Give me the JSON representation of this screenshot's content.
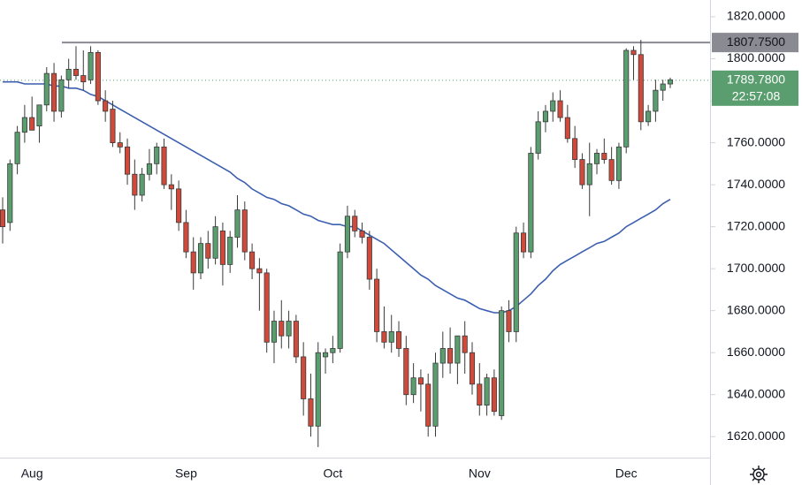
{
  "chart_data": {
    "type": "candlestick",
    "categories": [
      null,
      null,
      null,
      null,
      "Aug",
      null,
      null,
      null,
      null,
      null,
      null,
      null,
      null,
      null,
      null,
      null,
      null,
      null,
      null,
      null,
      null,
      null,
      null,
      null,
      null,
      "Sep",
      null,
      null,
      null,
      null,
      null,
      null,
      null,
      null,
      null,
      null,
      null,
      null,
      null,
      null,
      null,
      null,
      null,
      null,
      null,
      "Oct",
      null,
      null,
      null,
      null,
      null,
      null,
      null,
      null,
      null,
      null,
      null,
      null,
      null,
      null,
      null,
      null,
      null,
      null,
      null,
      "Nov",
      null,
      null,
      null,
      null,
      null,
      null,
      null,
      null,
      null,
      null,
      null,
      null,
      null,
      null,
      null,
      null,
      null,
      null,
      null,
      "Dec",
      null,
      null,
      null,
      null,
      null,
      null
    ],
    "open": [
      1728,
      1722,
      1750,
      1765,
      1772,
      1768,
      1778,
      1793,
      1775,
      1790,
      1795,
      1792,
      1790,
      1803,
      1780,
      1776,
      1760,
      1758,
      1745,
      1735,
      1745,
      1750,
      1758,
      1740,
      1738,
      1722,
      1708,
      1698,
      1712,
      1705,
      1718,
      1702,
      1715,
      1728,
      1708,
      1700,
      1698,
      1665,
      1675,
      1668,
      1675,
      1658,
      1638,
      1625,
      1658,
      1660,
      1662,
      1708,
      1725,
      1718,
      1715,
      1695,
      1670,
      1665,
      1670,
      1662,
      1640,
      1648,
      1645,
      1625,
      1655,
      1662,
      1655,
      1668,
      1660,
      1645,
      1635,
      1648,
      1630,
      1680,
      1670,
      1717,
      1708,
      1755,
      1770,
      1775,
      1780,
      1772,
      1762,
      1752,
      1740,
      1750,
      1755,
      1752,
      1742,
      1758,
      1804,
      1802,
      1770,
      1775,
      1785,
      1788
    ],
    "high": [
      1734,
      1752,
      1768,
      1778,
      1782,
      1778,
      1796,
      1798,
      1792,
      1800,
      1806,
      1804,
      1806,
      1804,
      1785,
      1780,
      1765,
      1762,
      1752,
      1748,
      1757,
      1760,
      1762,
      1745,
      1742,
      1728,
      1715,
      1715,
      1718,
      1725,
      1722,
      1718,
      1735,
      1732,
      1712,
      1705,
      1700,
      1680,
      1685,
      1680,
      1678,
      1665,
      1650,
      1665,
      1662,
      1668,
      1712,
      1730,
      1728,
      1722,
      1718,
      1700,
      1682,
      1678,
      1675,
      1668,
      1655,
      1652,
      1650,
      1660,
      1670,
      1672,
      1668,
      1675,
      1665,
      1655,
      1650,
      1652,
      1682,
      1685,
      1720,
      1722,
      1758,
      1775,
      1778,
      1784,
      1785,
      1778,
      1768,
      1755,
      1760,
      1757,
      1762,
      1758,
      1760,
      1805,
      1806,
      1809,
      1778,
      1790,
      1790,
      1791
    ],
    "low": [
      1712,
      1718,
      1745,
      1760,
      1768,
      1760,
      1775,
      1770,
      1772,
      1786,
      1790,
      1785,
      1788,
      1778,
      1770,
      1758,
      1755,
      1740,
      1728,
      1732,
      1742,
      1745,
      1738,
      1728,
      1718,
      1705,
      1690,
      1695,
      1700,
      1702,
      1692,
      1698,
      1710,
      1704,
      1695,
      1680,
      1660,
      1655,
      1662,
      1662,
      1655,
      1630,
      1620,
      1615,
      1650,
      1655,
      1660,
      1705,
      1715,
      1712,
      1690,
      1665,
      1662,
      1660,
      1658,
      1635,
      1636,
      1632,
      1620,
      1620,
      1648,
      1650,
      1645,
      1650,
      1640,
      1630,
      1630,
      1630,
      1628,
      1665,
      1665,
      1705,
      1705,
      1752,
      1765,
      1770,
      1770,
      1760,
      1748,
      1738,
      1725,
      1745,
      1750,
      1740,
      1738,
      1755,
      1790,
      1766,
      1768,
      1770,
      1780,
      1786
    ],
    "close": [
      1720,
      1750,
      1765,
      1772,
      1766,
      1778,
      1793,
      1775,
      1790,
      1795,
      1792,
      1789,
      1803,
      1780,
      1775,
      1760,
      1758,
      1745,
      1735,
      1745,
      1750,
      1758,
      1740,
      1738,
      1722,
      1708,
      1698,
      1712,
      1705,
      1720,
      1702,
      1715,
      1728,
      1708,
      1700,
      1698,
      1665,
      1675,
      1668,
      1675,
      1658,
      1638,
      1625,
      1660,
      1660,
      1662,
      1708,
      1725,
      1718,
      1715,
      1695,
      1670,
      1665,
      1670,
      1662,
      1640,
      1648,
      1645,
      1625,
      1655,
      1662,
      1655,
      1668,
      1660,
      1645,
      1635,
      1648,
      1632,
      1680,
      1670,
      1717,
      1708,
      1755,
      1770,
      1775,
      1780,
      1772,
      1762,
      1752,
      1740,
      1750,
      1755,
      1752,
      1742,
      1758,
      1804,
      1802,
      1770,
      1775,
      1785,
      1788,
      1790
    ],
    "up_color": "#5a9e6f",
    "down_color": "#cf4a3b",
    "series": [
      {
        "color": "#3c5fb0",
        "values": [
          1789,
          1789,
          1789,
          1788,
          1788,
          1788,
          1788,
          1787,
          1787,
          1786,
          1786,
          1785,
          1783,
          1782,
          1780,
          1778,
          1776,
          1774,
          1772,
          1770,
          1768,
          1766,
          1764,
          1762,
          1760,
          1758,
          1756,
          1754,
          1752,
          1750,
          1748,
          1746,
          1743,
          1741,
          1738,
          1736,
          1734,
          1733,
          1731,
          1730,
          1728,
          1726,
          1725,
          1723,
          1722,
          1721,
          1721,
          1720,
          1720,
          1718,
          1716,
          1714,
          1712,
          1709,
          1706,
          1703,
          1700,
          1697,
          1695,
          1692,
          1690,
          1688,
          1686,
          1685,
          1683,
          1681,
          1680,
          1679,
          1679,
          1680,
          1682,
          1685,
          1688,
          1692,
          1695,
          1699,
          1702,
          1704,
          1706,
          1708,
          1710,
          1712,
          1713,
          1715,
          1717,
          1720,
          1722,
          1724,
          1726,
          1728,
          1731,
          1733
        ]
      }
    ],
    "ylim": [
      1610,
      1828
    ],
    "yticks": [
      {
        "value": 1620,
        "label": "1620.0000"
      },
      {
        "value": 1640,
        "label": "1640.0000"
      },
      {
        "value": 1660,
        "label": "1660.0000"
      },
      {
        "value": 1680,
        "label": "1680.0000"
      },
      {
        "value": 1700,
        "label": "1700.0000"
      },
      {
        "value": 1720,
        "label": "1720.0000"
      },
      {
        "value": 1740,
        "label": "1740.0000"
      },
      {
        "value": 1760,
        "label": "1760.0000"
      },
      {
        "value": 1780,
        "label": "1780.0000"
      },
      {
        "value": 1800,
        "label": "1800.0000"
      },
      {
        "value": 1820,
        "label": "1820.0000"
      }
    ],
    "hline": {
      "value": 1807.75,
      "label": "1807.7500",
      "color": "#8a8a92"
    },
    "last_price": {
      "value": 1789.78,
      "label": "1789.7800",
      "countdown": "22:57:08",
      "color": "#5a9e6f"
    }
  }
}
